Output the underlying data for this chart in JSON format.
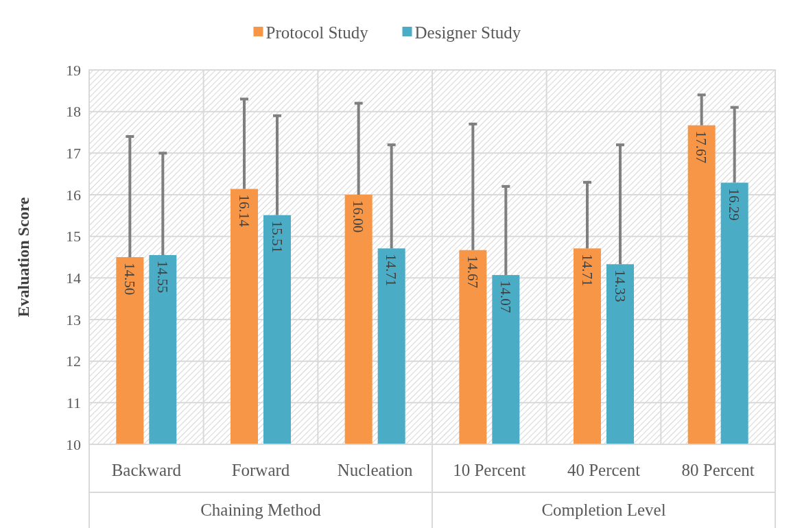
{
  "chart_data": {
    "type": "bar",
    "ylabel": "Evaluation Score",
    "categories": [
      "Backward",
      "Forward",
      "Nucleation",
      "10 Percent",
      "40 Percent",
      "80 Percent"
    ],
    "series": [
      {
        "name": "Protocol Study",
        "color": "#f79646",
        "values": [
          14.5,
          16.14,
          16.0,
          14.67,
          14.71,
          17.67
        ],
        "value_labels": [
          "14.50",
          "16.14",
          "16.00",
          "14.67",
          "14.71",
          "17.67"
        ],
        "errors": [
          [
            14.5,
            17.4
          ],
          [
            16.14,
            18.3
          ],
          [
            16.0,
            18.2
          ],
          [
            14.67,
            17.7
          ],
          [
            14.71,
            16.3
          ],
          [
            17.67,
            18.4
          ]
        ]
      },
      {
        "name": "Designer Study",
        "color": "#4bacc6",
        "values": [
          14.55,
          15.51,
          14.71,
          14.07,
          14.33,
          16.29
        ],
        "value_labels": [
          "14.55",
          "15.51",
          "14.71",
          "14.07",
          "14.33",
          "16.29"
        ],
        "errors": [
          [
            14.55,
            17.0
          ],
          [
            15.51,
            17.9
          ],
          [
            14.71,
            17.2
          ],
          [
            14.07,
            16.2
          ],
          [
            14.33,
            17.2
          ],
          [
            16.29,
            18.1
          ]
        ]
      }
    ],
    "annotations": [
      "Chaining Method",
      "Completion Level"
    ],
    "ylim": [
      10,
      19
    ],
    "yticks": [
      10,
      11,
      12,
      13,
      14,
      15,
      16,
      17,
      18,
      19
    ],
    "grid": true,
    "legend": "top"
  }
}
